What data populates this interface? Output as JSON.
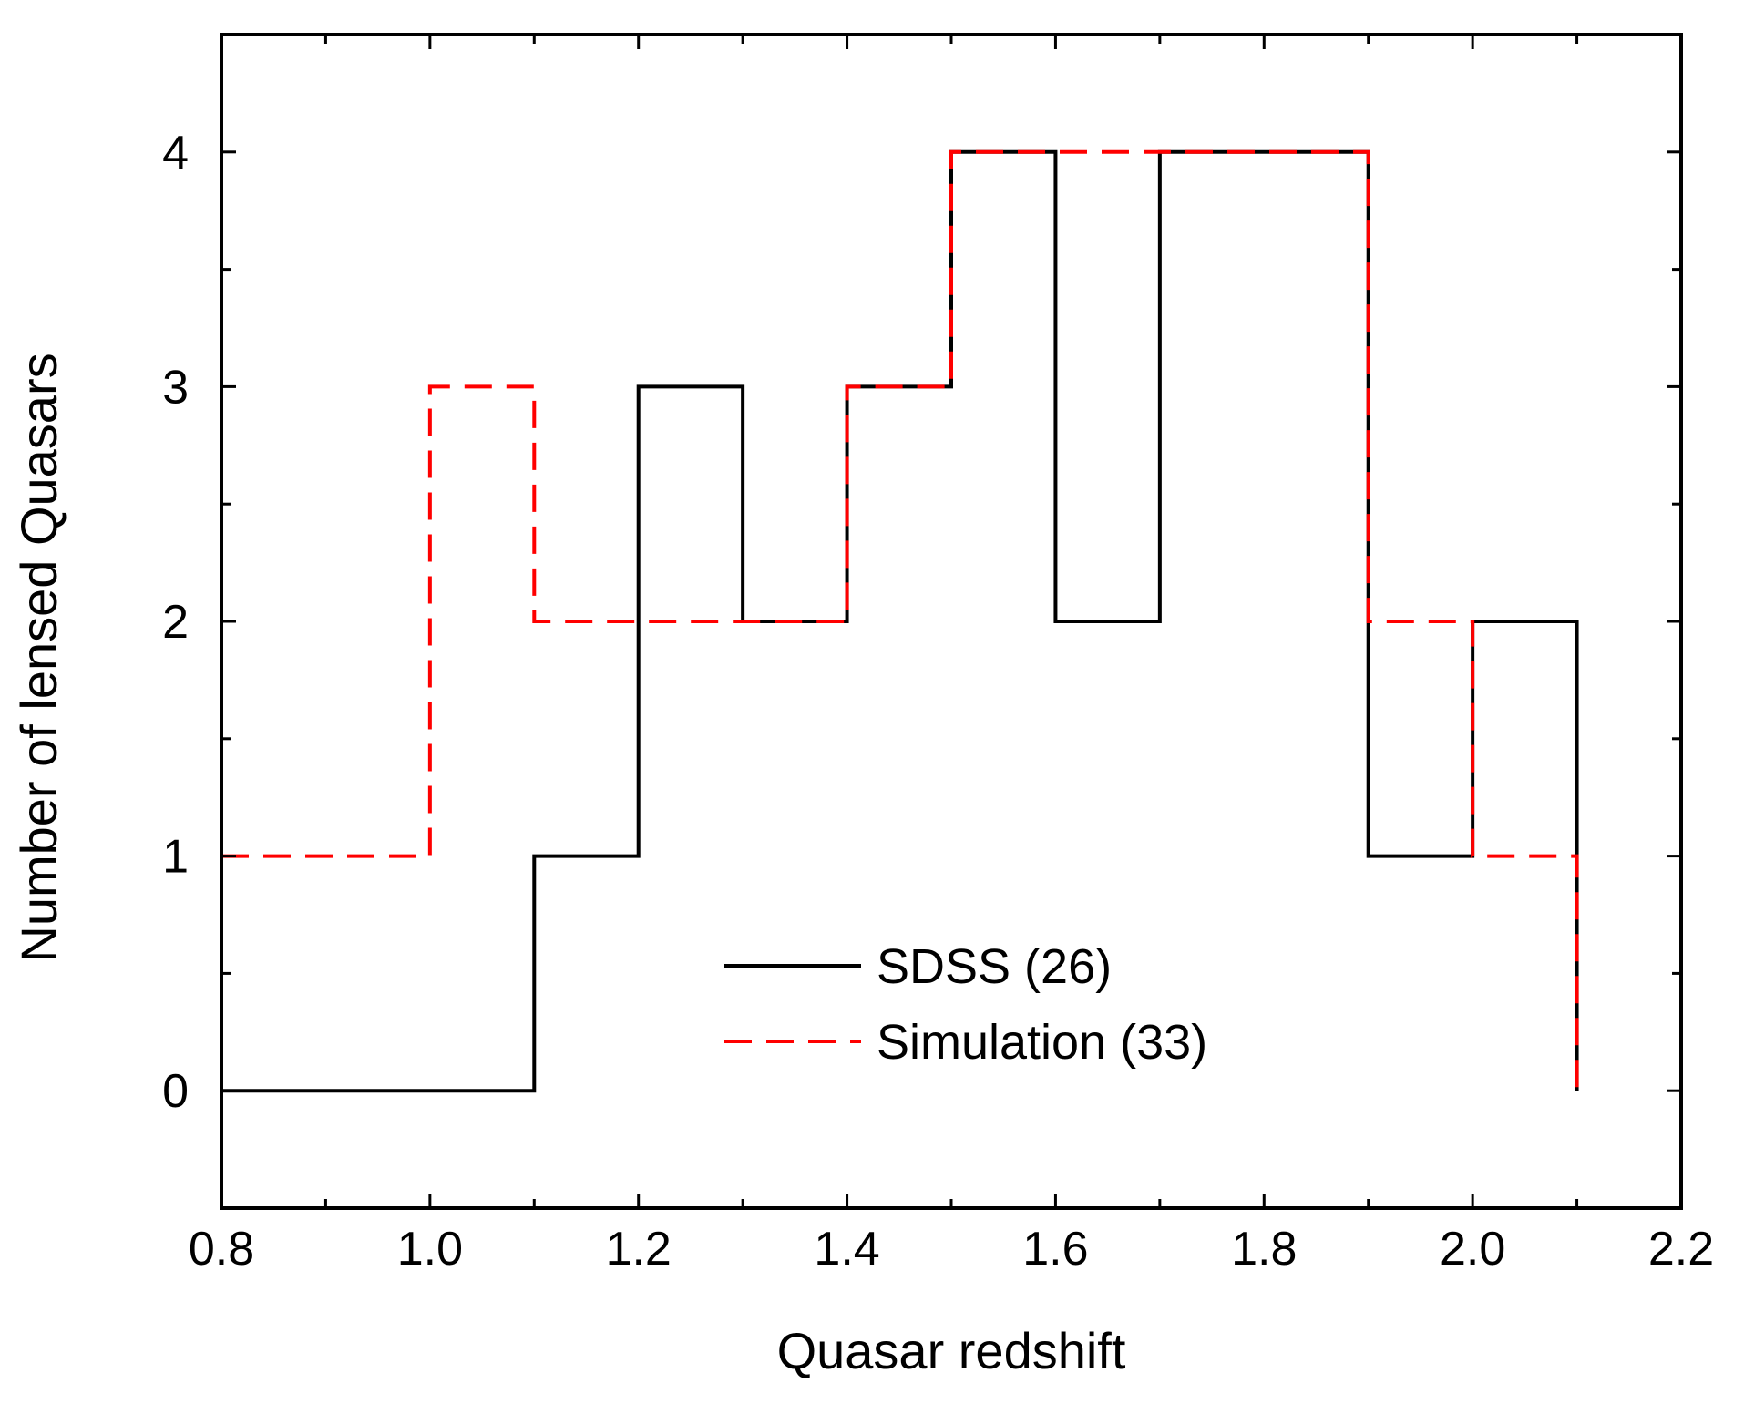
{
  "chart_data": {
    "type": "line",
    "subtype": "step-histogram",
    "title": "",
    "xlabel": "Quasar redshift",
    "ylabel": "Number of lensed Quasars",
    "xlim": [
      0.8,
      2.2
    ],
    "ylim": [
      -0.5,
      4.5
    ],
    "x_ticks": [
      0.8,
      1.0,
      1.2,
      1.4,
      1.6,
      1.8,
      2.0,
      2.2
    ],
    "x_tick_labels": [
      "0.8",
      "1.0",
      "1.2",
      "1.4",
      "1.6",
      "1.8",
      "2.0",
      "2.2"
    ],
    "y_ticks": [
      0,
      1,
      2,
      3,
      4
    ],
    "y_tick_labels": [
      "0",
      "1",
      "2",
      "3",
      "4"
    ],
    "bin_edges": [
      0.8,
      0.9,
      1.0,
      1.1,
      1.2,
      1.3,
      1.4,
      1.5,
      1.6,
      1.7,
      1.8,
      1.9,
      2.0,
      2.1
    ],
    "series": [
      {
        "name": "SDSS (26)",
        "color": "#000000",
        "style": "solid",
        "values": [
          0,
          0,
          0,
          1,
          3,
          2,
          3,
          4,
          2,
          4,
          4,
          1,
          2
        ]
      },
      {
        "name": "Simulation (33)",
        "color": "#ff0000",
        "style": "dashed",
        "values": [
          1,
          1,
          3,
          2,
          2,
          2,
          3,
          4,
          4,
          4,
          4,
          2,
          1
        ]
      }
    ],
    "legend": {
      "position": "center-bottom",
      "entries": [
        "SDSS (26)",
        "Simulation (33)"
      ]
    },
    "grid": false
  }
}
